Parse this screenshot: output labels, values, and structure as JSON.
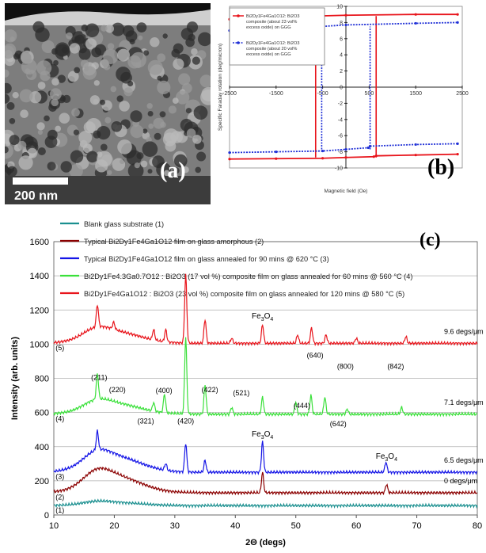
{
  "panel_a": {
    "label": "(a)",
    "scale_bar": "200 nm"
  },
  "chart_data": [
    {
      "id": "b",
      "type": "line",
      "panel_label": "(b)",
      "xlabel": "Magnetic field (Oe)",
      "ylabel": "Specific Faraday rotation (deg/micron)",
      "xlim": [
        -2500,
        2500
      ],
      "ylim": [
        -10,
        10
      ],
      "x_ticks": [
        -2500,
        -1500,
        -500,
        500,
        1500,
        2500
      ],
      "x_tick_labels": [
        "-2500",
        "-1500",
        "-500",
        "500",
        "1500",
        "2500"
      ],
      "y_ticks": [
        10,
        8,
        6,
        4,
        2,
        0,
        -2,
        -4,
        -6,
        -8,
        -10
      ],
      "y_tick_labels": [
        "10",
        "8",
        "6",
        "4",
        "2",
        "0",
        "-2",
        "-4",
        "-6",
        "-8",
        "-10"
      ],
      "legend": [
        "Bi2Dy1Fe4Ga1O12: Bi2O3 composite (about 23 vol% excess oxide) on GGG",
        "Bi2Dy1Fe4Ga1O12: Bi2O3 composite (about 20 vol% excess oxide) on GGG"
      ],
      "series": [
        {
          "color": "#e8141b",
          "style": "solid",
          "upper_branch": [
            [
              -2500,
              8.4
            ],
            [
              -1500,
              8.6
            ],
            [
              -700,
              8.7
            ],
            [
              -650,
              8.8
            ],
            [
              0,
              8.9
            ],
            [
              1500,
              9.0
            ],
            [
              2400,
              9.0
            ]
          ],
          "lower_branch": [
            [
              -2500,
              -8.9
            ],
            [
              -1500,
              -8.85
            ],
            [
              -500,
              -8.8
            ],
            [
              0,
              -8.7
            ],
            [
              600,
              -8.6
            ],
            [
              650,
              -8.5
            ],
            [
              1500,
              -8.4
            ],
            [
              2400,
              -8.3
            ]
          ],
          "coercive_field": 650
        },
        {
          "color": "#1f2fd6",
          "style": "dotted",
          "upper_branch": [
            [
              -2500,
              7.0
            ],
            [
              -1500,
              7.1
            ],
            [
              -600,
              7.2
            ],
            [
              -550,
              7.5
            ],
            [
              0,
              7.7
            ],
            [
              1500,
              7.9
            ],
            [
              2400,
              8.0
            ]
          ],
          "lower_branch": [
            [
              -2500,
              -8.1
            ],
            [
              -1500,
              -8.0
            ],
            [
              -500,
              -7.9
            ],
            [
              0,
              -7.7
            ],
            [
              480,
              -7.5
            ],
            [
              520,
              -7.3
            ],
            [
              1500,
              -7.1
            ],
            [
              2400,
              -7.0
            ]
          ],
          "coercive_field": 520
        }
      ]
    },
    {
      "id": "c",
      "type": "line",
      "panel_label": "(c)",
      "xlabel": "2Θ (degs)",
      "ylabel": "Intensity (arb. units)",
      "xlim": [
        10,
        80
      ],
      "ylim": [
        0,
        1600
      ],
      "x_ticks": [
        10,
        20,
        30,
        40,
        50,
        60,
        70,
        80
      ],
      "y_ticks": [
        0,
        200,
        400,
        600,
        800,
        1000,
        1200,
        1400,
        1600
      ],
      "series": [
        {
          "name": "Blank glass substrate (1)",
          "color": "#1a8f8f",
          "curve_label": "(1)",
          "right_label": "",
          "baseline": 55,
          "hump": 30,
          "peaks": []
        },
        {
          "name": "Typical Bi2Dy1Fe4Ga1O12 film on glass amorphous  (2)",
          "color": "#8b0000",
          "curve_label": "(2)",
          "right_label": "0 degs/μm",
          "baseline": 130,
          "hump": 160,
          "peaks": [
            [
              44.5,
              120
            ],
            [
              65.0,
              50
            ]
          ]
        },
        {
          "name": "Typical Bi2Dy1Fe4Ga1O12 film on glass annealed for 90 mins @ 620 °C (3)",
          "color": "#1414e6",
          "curve_label": "(3)",
          "right_label": "6.5 degs/μm",
          "baseline": 250,
          "hump": 150,
          "peaks": [
            [
              17.2,
              110
            ],
            [
              28.5,
              40
            ],
            [
              31.8,
              170
            ],
            [
              35.0,
              70
            ],
            [
              44.5,
              180
            ],
            [
              64.9,
              60
            ]
          ]
        },
        {
          "name": "Bi2Dy1Fe4.3Ga0.7O12 : Bi2O3 (17 vol %) composite film on glass annealed for 60 mins @ 560 °C (4)",
          "color": "#3ae03a",
          "curve_label": "(4)",
          "right_label": "7.1 degs/μm",
          "baseline": 590,
          "hump": 100,
          "peaks": [
            [
              17.2,
              150
            ],
            [
              26.5,
              50
            ],
            [
              28.3,
              110
            ],
            [
              31.8,
              450
            ],
            [
              35.0,
              170
            ],
            [
              39.4,
              40
            ],
            [
              44.5,
              100
            ],
            [
              50.0,
              70
            ],
            [
              52.5,
              110
            ],
            [
              54.8,
              100
            ],
            [
              58.5,
              30
            ],
            [
              67.5,
              40
            ]
          ]
        },
        {
          "name": "Bi2Dy1Fe4Ga1O12 : Bi2O3 (23 vol %) composite film on glass annealed for 120 mins @ 580 °C (5)",
          "color": "#e8141b",
          "curve_label": "(5)",
          "right_label": "9.6 degs/μm",
          "baseline": 1005,
          "hump": 110,
          "peaks": [
            [
              17.2,
              130
            ],
            [
              19.9,
              40
            ],
            [
              26.5,
              60
            ],
            [
              28.5,
              70
            ],
            [
              31.8,
              400
            ],
            [
              35.0,
              140
            ],
            [
              39.4,
              30
            ],
            [
              44.5,
              110
            ],
            [
              50.3,
              50
            ],
            [
              52.6,
              90
            ],
            [
              55.0,
              50
            ],
            [
              60.0,
              30
            ],
            [
              68.2,
              40
            ]
          ]
        }
      ],
      "annotations": [
        {
          "text": "(211)",
          "x": 17.5,
          "y": 790
        },
        {
          "text": "(220)",
          "x": 20.5,
          "y": 720
        },
        {
          "text": "(400)",
          "x": 28.2,
          "y": 715
        },
        {
          "text": "(321)",
          "x": 25.2,
          "y": 535
        },
        {
          "text": "(420)",
          "x": 31.8,
          "y": 535
        },
        {
          "text": "(422)",
          "x": 35.8,
          "y": 720
        },
        {
          "text": "(521)",
          "x": 41.0,
          "y": 700
        },
        {
          "text": "(444)",
          "x": 51.0,
          "y": 625
        },
        {
          "text": "(642)",
          "x": 57.0,
          "y": 520
        },
        {
          "text": "(640)",
          "x": 53.2,
          "y": 920
        },
        {
          "text": "(800)",
          "x": 58.2,
          "y": 855
        },
        {
          "text": "(842)",
          "x": 66.5,
          "y": 855
        }
      ],
      "fe3o4_labels": [
        {
          "x": 44.5,
          "y": 1150
        },
        {
          "x": 44.5,
          "y": 460
        },
        {
          "x": 65.0,
          "y": 330
        }
      ]
    }
  ],
  "fe3o4_text": {
    "main": "Fe",
    "sub": "3",
    "mid": "O",
    "sub2": "4"
  }
}
